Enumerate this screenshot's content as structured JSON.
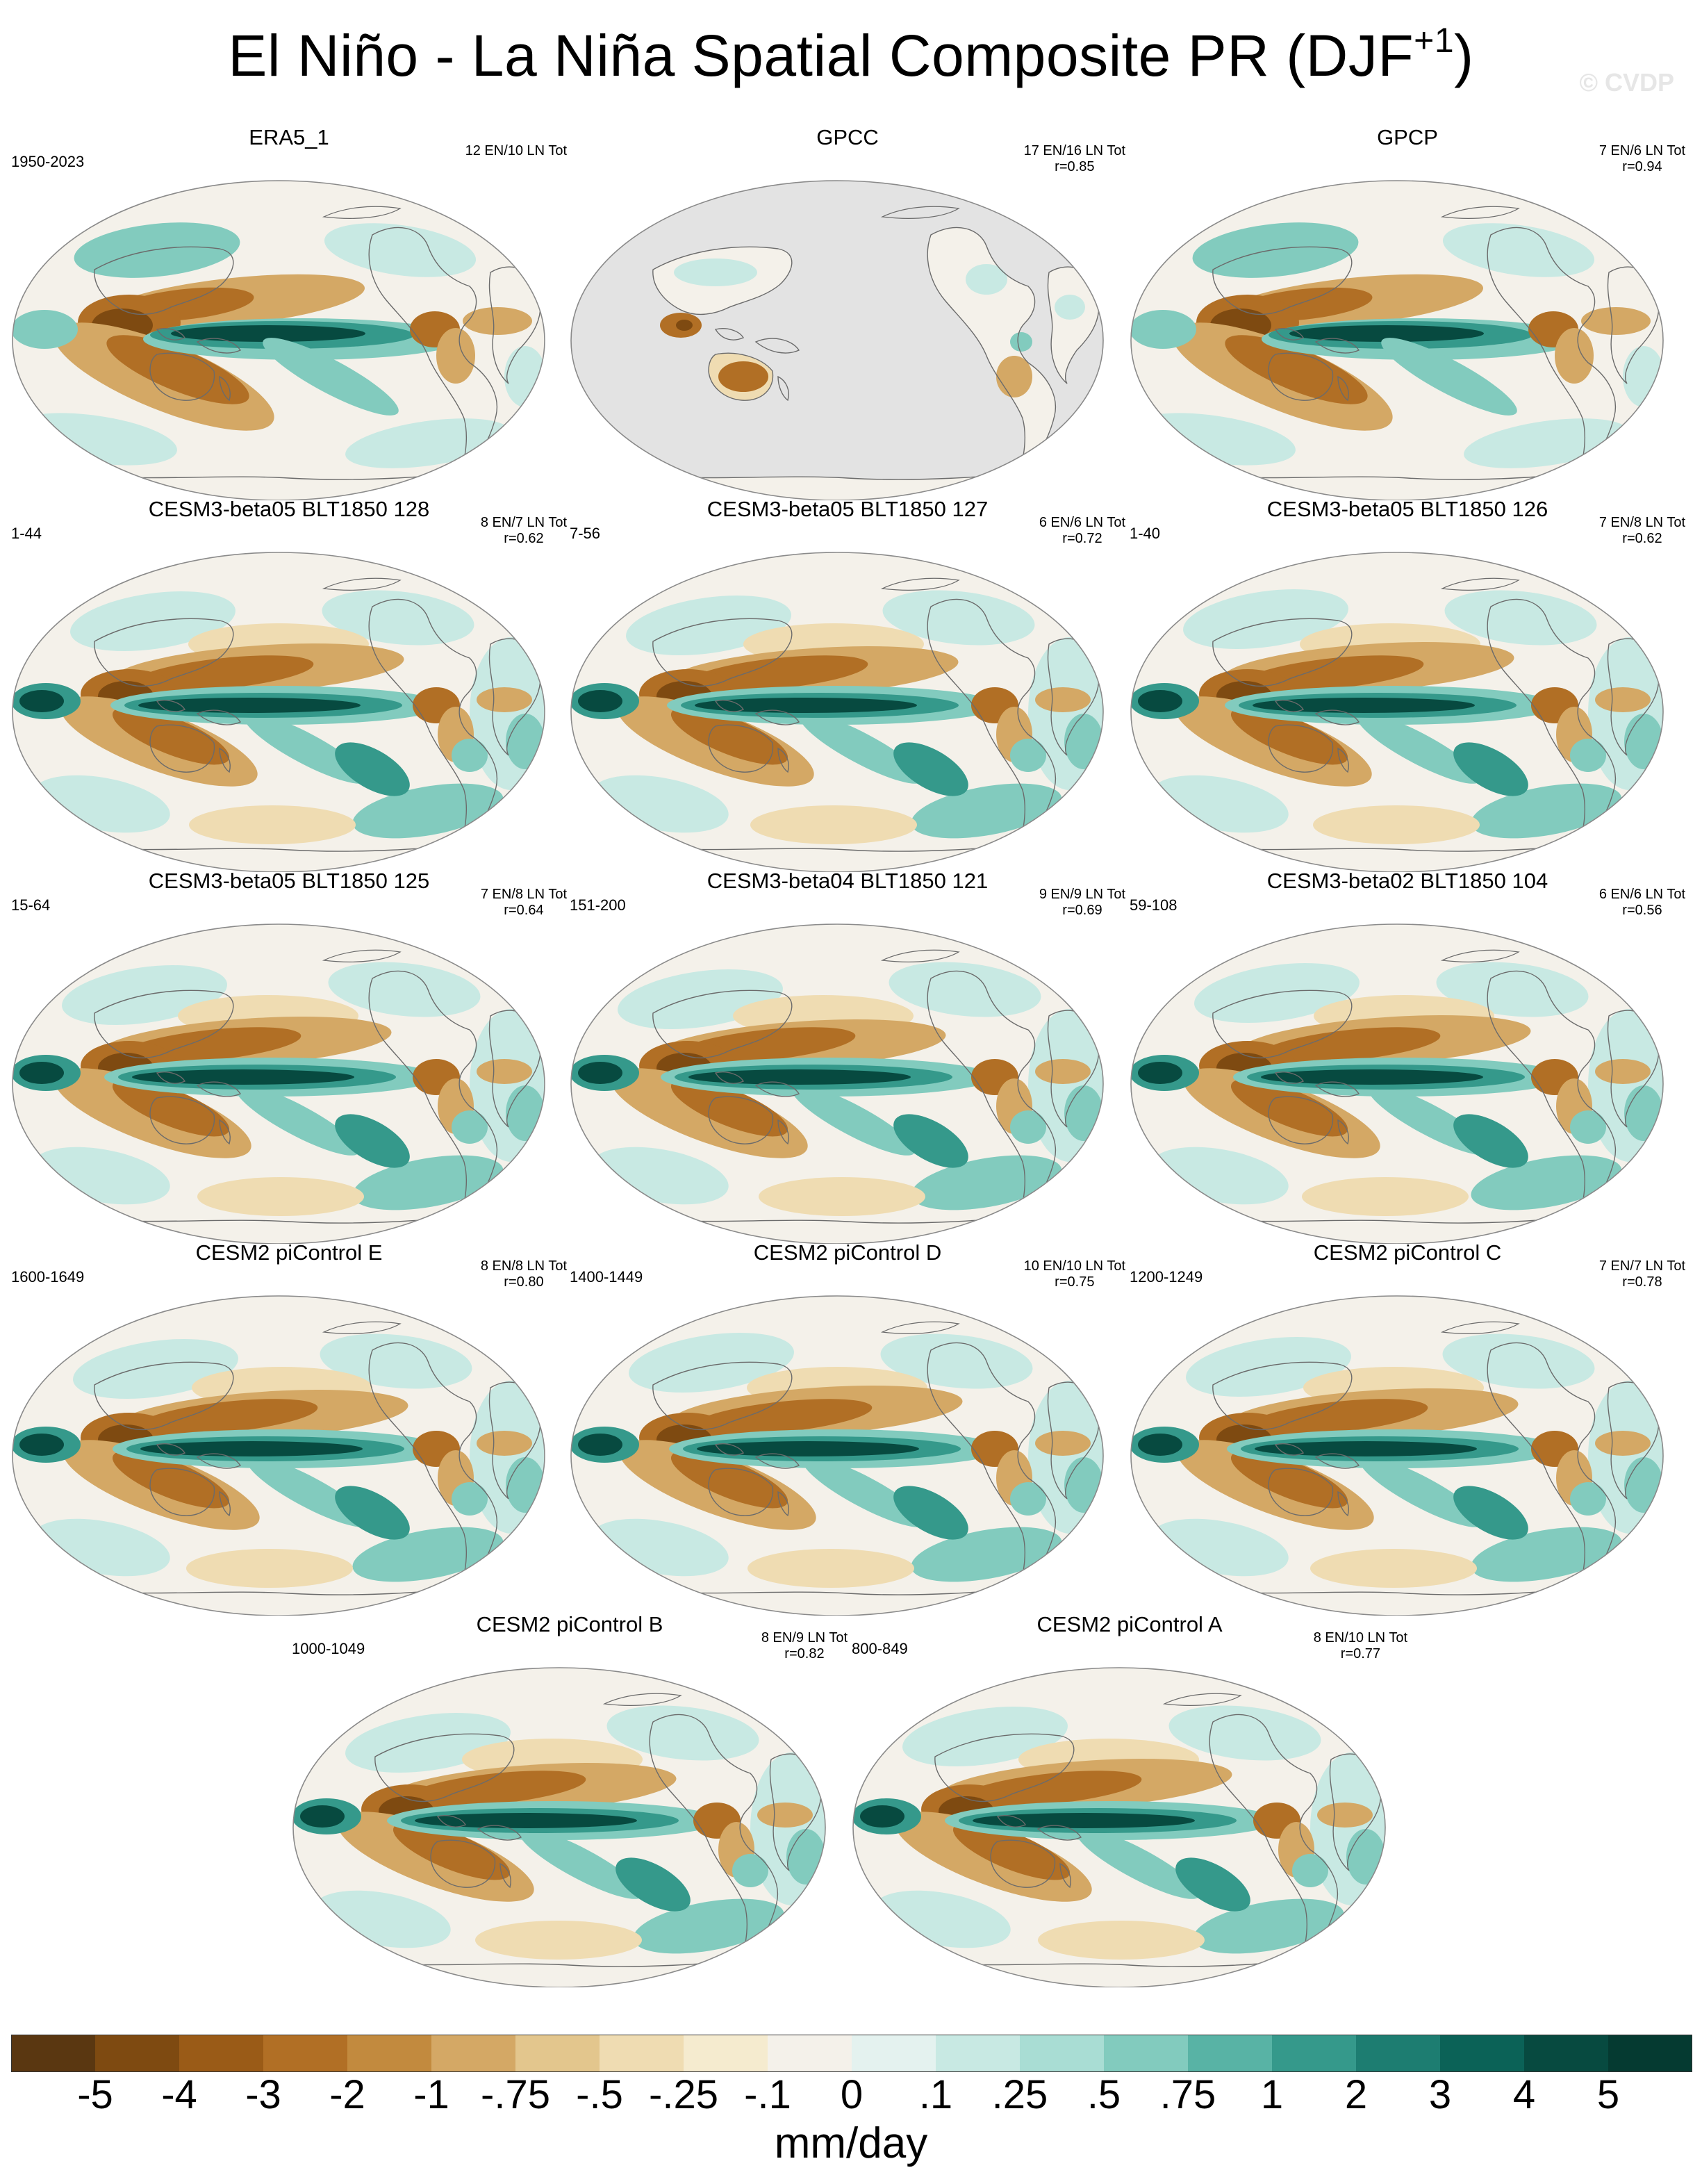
{
  "figure": {
    "title_main": "El Niño - La Niña Spatial Composite PR (DJF",
    "title_sup": "+1",
    "title_close": ")",
    "copyright": "© CVDP"
  },
  "colors": {
    "land_outline": "#6b6b6b",
    "map_border": "#8a8a8a",
    "masked_gray": "#e3e3e3"
  },
  "panels": [
    {
      "title": "ERA5_1",
      "years": "1950-2023",
      "counts": "12 EN/10 LN Tot",
      "r": "",
      "style": "obs"
    },
    {
      "title": "GPCC",
      "years": "",
      "counts": "17 EN/16 LN Tot",
      "r": "r=0.85",
      "style": "gpcc"
    },
    {
      "title": "GPCP",
      "years": "",
      "counts": "7 EN/6 LN Tot",
      "r": "r=0.94",
      "style": "obs"
    },
    {
      "title": "CESM3-beta05 BLT1850 128",
      "years": "1-44",
      "counts": "8 EN/7 LN Tot",
      "r": "r=0.62",
      "style": "model"
    },
    {
      "title": "CESM3-beta05 BLT1850 127",
      "years": "7-56",
      "counts": "6 EN/6 LN Tot",
      "r": "r=0.72",
      "style": "model"
    },
    {
      "title": "CESM3-beta05 BLT1850 126",
      "years": "1-40",
      "counts": "7 EN/8 LN Tot",
      "r": "r=0.62",
      "style": "model"
    },
    {
      "title": "CESM3-beta05 BLT1850 125",
      "years": "15-64",
      "counts": "7 EN/8 LN Tot",
      "r": "r=0.64",
      "style": "model"
    },
    {
      "title": "CESM3-beta04 BLT1850 121",
      "years": "151-200",
      "counts": "9 EN/9 LN Tot",
      "r": "r=0.69",
      "style": "model"
    },
    {
      "title": "CESM3-beta02 BLT1850 104",
      "years": "59-108",
      "counts": "6 EN/6 LN Tot",
      "r": "r=0.56",
      "style": "model"
    },
    {
      "title": "CESM2 piControl E",
      "years": "1600-1649",
      "counts": "8 EN/8 LN Tot",
      "r": "r=0.80",
      "style": "model"
    },
    {
      "title": "CESM2 piControl D",
      "years": "1400-1449",
      "counts": "10 EN/10 LN Tot",
      "r": "r=0.75",
      "style": "model"
    },
    {
      "title": "CESM2 piControl C",
      "years": "1200-1249",
      "counts": "7 EN/7 LN Tot",
      "r": "r=0.78",
      "style": "model"
    },
    {
      "title": "CESM2 piControl B",
      "years": "1000-1049",
      "counts": "8 EN/9 LN Tot",
      "r": "r=0.82",
      "style": "model"
    },
    {
      "title": "CESM2 piControl A",
      "years": "800-849",
      "counts": "8 EN/10 LN Tot",
      "r": "r=0.77",
      "style": "model"
    }
  ],
  "colorbar": {
    "units": "mm/day",
    "labels": [
      "-5",
      "-4",
      "-3",
      "-2",
      "-1",
      "-.75",
      "-.5",
      "-.25",
      "-.1",
      "0",
      ".1",
      ".25",
      ".5",
      ".75",
      "1",
      "2",
      "3",
      "4",
      "5"
    ],
    "colors": [
      "#5a3711",
      "#7e4a11",
      "#9a5b17",
      "#b16f25",
      "#c28a3e",
      "#d4a865",
      "#e3c68d",
      "#efdcb2",
      "#f5ebcf",
      "#f4f1ea",
      "#e4f2ef",
      "#c8e9e3",
      "#a9ddd4",
      "#82cbbe",
      "#58b3a5",
      "#35998b",
      "#1d7d71",
      "#0b6257",
      "#074a40",
      "#053a31"
    ]
  }
}
